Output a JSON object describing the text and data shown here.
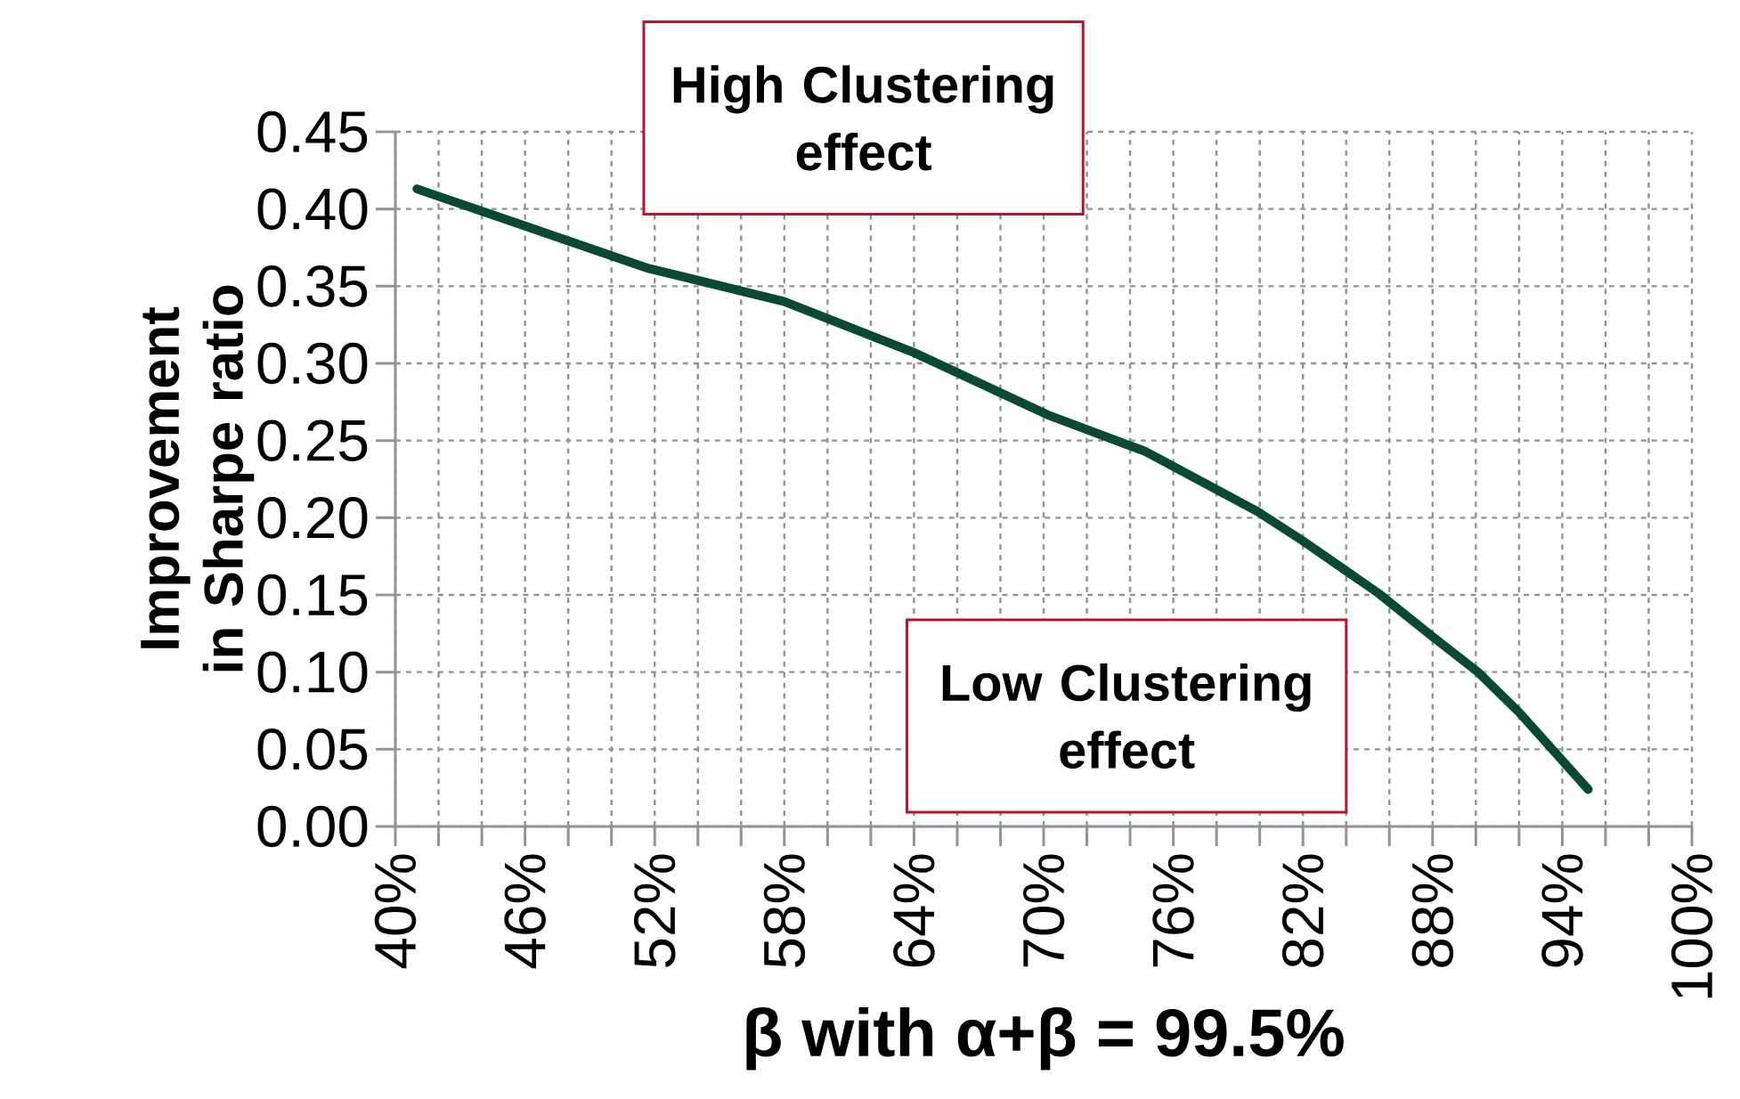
{
  "chart_data": {
    "type": "line",
    "xlabel": "β with α+β = 99.5%",
    "ylabel": "Improvement in Sharpe ratio",
    "x": [
      41,
      46,
      51.6,
      58,
      64,
      70.3,
      74.7,
      79.9,
      82,
      85.5,
      88,
      90.1,
      92,
      95.2
    ],
    "series": [
      {
        "color": "#0b4a32",
        "values": [
          0.413,
          0.389,
          0.362,
          0.34,
          0.307,
          0.266,
          0.243,
          0.204,
          0.185,
          0.151,
          0.123,
          0.1,
          0.074,
          0.024
        ]
      }
    ],
    "xlim": [
      40,
      100
    ],
    "ylim": [
      0,
      0.45
    ],
    "xticks": [
      {
        "value": 40,
        "label": "40%"
      },
      {
        "value": 42,
        "label": null
      },
      {
        "value": 44,
        "label": null
      },
      {
        "value": 46,
        "label": "46%"
      },
      {
        "value": 48,
        "label": null
      },
      {
        "value": 50,
        "label": null
      },
      {
        "value": 52,
        "label": "52%"
      },
      {
        "value": 54,
        "label": null
      },
      {
        "value": 56,
        "label": null
      },
      {
        "value": 58,
        "label": "58%"
      },
      {
        "value": 60,
        "label": null
      },
      {
        "value": 62,
        "label": null
      },
      {
        "value": 64,
        "label": "64%"
      },
      {
        "value": 66,
        "label": null
      },
      {
        "value": 68,
        "label": null
      },
      {
        "value": 70,
        "label": "70%"
      },
      {
        "value": 72,
        "label": null
      },
      {
        "value": 74,
        "label": null
      },
      {
        "value": 76,
        "label": "76%"
      },
      {
        "value": 78,
        "label": null
      },
      {
        "value": 80,
        "label": null
      },
      {
        "value": 82,
        "label": "82%"
      },
      {
        "value": 84,
        "label": null
      },
      {
        "value": 86,
        "label": null
      },
      {
        "value": 88,
        "label": "88%"
      },
      {
        "value": 90,
        "label": null
      },
      {
        "value": 92,
        "label": null
      },
      {
        "value": 94,
        "label": "94%"
      },
      {
        "value": 96,
        "label": null
      },
      {
        "value": 98,
        "label": null
      },
      {
        "value": 100,
        "label": "100%"
      }
    ],
    "yticks": [
      {
        "value": 0,
        "label": "0.00"
      },
      {
        "value": 0.05,
        "label": "0.05"
      },
      {
        "value": 0.1,
        "label": "0.10"
      },
      {
        "value": 0.15,
        "label": "0.15"
      },
      {
        "value": 0.2,
        "label": "0.20"
      },
      {
        "value": 0.25,
        "label": "0.25"
      },
      {
        "value": 0.3,
        "label": "0.30"
      },
      {
        "value": 0.35,
        "label": "0.35"
      },
      {
        "value": 0.4,
        "label": "0.40"
      },
      {
        "value": 0.45,
        "label": "0.45"
      }
    ],
    "grid": true,
    "annotations": [
      "High Clustering effect",
      "Low Clustering effect"
    ]
  }
}
